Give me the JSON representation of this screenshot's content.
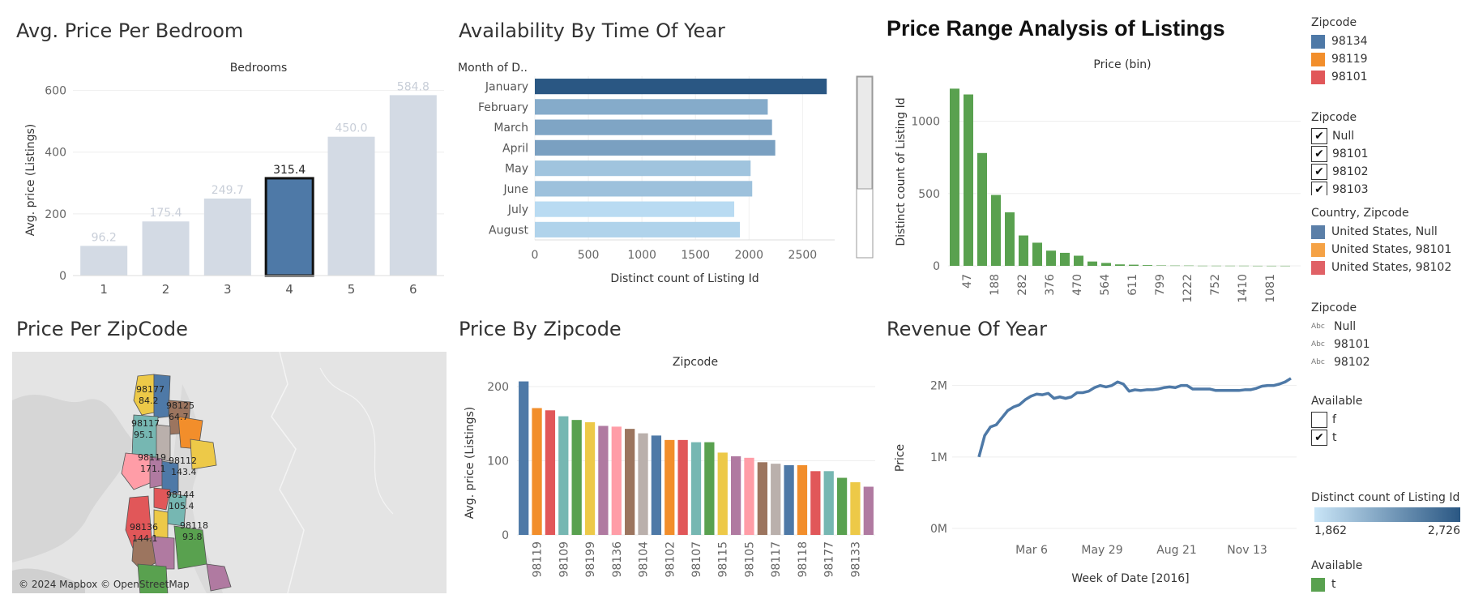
{
  "panels": {
    "bedroom": {
      "title": "Avg. Price Per Bedroom"
    },
    "availability": {
      "title": "Availability By Time Of Year"
    },
    "range": {
      "title": "Price Range Analysis of Listings"
    },
    "map": {
      "title": "Price Per ZipCode",
      "attribution": "© 2024 Mapbox © OpenStreetMap"
    },
    "zipbar": {
      "title": "Price By Zipcode"
    },
    "revenue": {
      "title": "Revenue Of Year"
    }
  },
  "chart_data": [
    {
      "id": "bedroom",
      "type": "bar",
      "title": "Avg. Price Per Bedroom",
      "column_header": "Bedrooms",
      "ylabel": "Avg. price (Listings)",
      "categories": [
        "1",
        "2",
        "3",
        "4",
        "5",
        "6"
      ],
      "values": [
        96.2,
        175.4,
        249.7,
        315.4,
        450.0,
        584.8
      ],
      "value_labels": [
        "96.2",
        "175.4",
        "249.7",
        "315.4",
        "450.0",
        "584.8"
      ],
      "highlighted": "4",
      "ylim": [
        0,
        620
      ],
      "yticks": [
        0,
        200,
        400,
        600
      ],
      "colors": {
        "highlight": "#4e79a7",
        "dim": "#d3dae4"
      }
    },
    {
      "id": "availability",
      "type": "bar",
      "orientation": "horizontal",
      "title": "Availability By Time Of Year",
      "row_header": "Month of D..",
      "xlabel": "Distinct count of Listing Id",
      "categories": [
        "January",
        "February",
        "March",
        "April",
        "May",
        "June",
        "July",
        "August"
      ],
      "values": [
        2726,
        2175,
        2215,
        2245,
        2015,
        2030,
        1862,
        1915
      ],
      "xlim": [
        0,
        2800
      ],
      "xticks": [
        0,
        500,
        1000,
        1500,
        2000,
        2500
      ],
      "colors": {
        "low": "#b9dbf2",
        "high": "#2a5783"
      }
    },
    {
      "id": "range",
      "type": "bar",
      "title": "Price Range Analysis of Listings",
      "column_header": "Price (bin)",
      "ylabel": "Distinct count of Listing Id",
      "values": [
        1225,
        1185,
        780,
        490,
        370,
        210,
        160,
        105,
        90,
        70,
        30,
        20,
        10,
        8,
        5,
        3,
        2,
        2,
        1,
        1,
        1,
        1,
        0.5,
        0.5,
        0.5,
        0.5,
        0.5,
        0.5,
        0.5,
        0.5,
        0.5,
        0.5
      ],
      "tick_labels": [
        "47",
        "188",
        "282",
        "376",
        "470",
        "564",
        "611",
        "799",
        "1222",
        "752",
        "1410",
        "1081"
      ],
      "ylim": [
        0,
        1300
      ],
      "yticks": [
        0,
        500,
        1000
      ],
      "colors": {
        "bar": "#59a14f"
      }
    },
    {
      "id": "zipbar",
      "type": "bar",
      "title": "Price By Zipcode",
      "column_header": "Zipcode",
      "ylabel": "Avg. price (Listings)",
      "values": [
        207,
        171,
        168,
        160,
        155,
        152,
        147,
        146,
        143,
        137,
        134,
        128,
        128,
        125,
        125,
        111,
        106,
        104,
        98,
        96,
        94,
        94,
        86,
        86,
        77,
        71,
        65
      ],
      "tick_labels": [
        "98119",
        "98109",
        "98199",
        "98136",
        "98104",
        "98102",
        "98107",
        "98115",
        "98105",
        "98117",
        "98118",
        "98177",
        "98133"
      ],
      "ylim": [
        0,
        212
      ],
      "yticks": [
        0,
        100,
        200
      ],
      "colors": [
        "#4e79a7",
        "#f28e2b",
        "#e15759",
        "#76b7b2",
        "#59a14f",
        "#edc948",
        "#b07aa1",
        "#ff9da7",
        "#9c755f",
        "#bab0ac",
        "#4e79a7",
        "#f28e2b",
        "#e15759",
        "#76b7b2",
        "#59a14f",
        "#edc948",
        "#b07aa1",
        "#ff9da7",
        "#9c755f",
        "#bab0ac",
        "#4e79a7",
        "#f28e2b",
        "#e15759",
        "#76b7b2",
        "#59a14f",
        "#edc948",
        "#b07aa1"
      ]
    },
    {
      "id": "revenue",
      "type": "line",
      "title": "Revenue Of Year",
      "ylabel": "Price",
      "xlabel": "Week of Date [2016]",
      "values": [
        1.0,
        1.3,
        1.42,
        1.45,
        1.55,
        1.65,
        1.7,
        1.73,
        1.8,
        1.85,
        1.88,
        1.87,
        1.89,
        1.82,
        1.84,
        1.82,
        1.84,
        1.9,
        1.9,
        1.92,
        1.97,
        2.0,
        1.98,
        2.0,
        2.05,
        2.02,
        1.92,
        1.94,
        1.93,
        1.94,
        1.94,
        1.95,
        1.97,
        1.98,
        1.97,
        2.0,
        2.0,
        1.95,
        1.95,
        1.95,
        1.95,
        1.93,
        1.93,
        1.93,
        1.93,
        1.93,
        1.94,
        1.94,
        1.96,
        1.99,
        2.0,
        2.0,
        2.02,
        2.05,
        2.1
      ],
      "x_tick_labels": [
        "Mar 6",
        "May 29",
        "Aug 21",
        "Nov 13"
      ],
      "y_tick_labels": [
        "0M",
        "1M",
        "2M"
      ],
      "ylim": [
        0,
        2.2
      ],
      "colors": {
        "line": "#4e79a7"
      }
    },
    {
      "id": "map",
      "type": "map",
      "title": "Price Per ZipCode",
      "labels": [
        {
          "zip": "98177",
          "price": "84.2"
        },
        {
          "zip": "98125",
          "price": "64.7"
        },
        {
          "zip": "98117",
          "price": "95.1"
        },
        {
          "zip": "98119",
          "price": "171.1"
        },
        {
          "zip": "98112",
          "price": "143.4"
        },
        {
          "zip": "98144",
          "price": "105.4"
        },
        {
          "zip": "98136",
          "price": "144.1"
        },
        {
          "zip": "98118",
          "price": "93.8"
        }
      ]
    }
  ],
  "legend": {
    "zip_colors": {
      "title": "Zipcode",
      "items": [
        {
          "label": "98134",
          "color": "#4e79a7"
        },
        {
          "label": "98119",
          "color": "#f28e2b"
        },
        {
          "label": "98101",
          "color": "#e15759"
        }
      ]
    },
    "zip_filter": {
      "title": "Zipcode",
      "items": [
        {
          "label": "Null",
          "checked": "✔"
        },
        {
          "label": "98101",
          "checked": "✔"
        },
        {
          "label": "98102",
          "checked": "✔"
        },
        {
          "label": "98103",
          "checked": "✔"
        }
      ]
    },
    "country_zip": {
      "title": "Country, Zipcode",
      "items": [
        {
          "label": "United States, Null",
          "color": "#5b7fa8"
        },
        {
          "label": "United States, 98101",
          "color": "#f5a245"
        },
        {
          "label": "United States, 98102",
          "color": "#e06166"
        }
      ]
    },
    "zip_text": {
      "title": "Zipcode",
      "abc": "Abc",
      "items": [
        "Null",
        "98101",
        "98102"
      ]
    },
    "available": {
      "title": "Available",
      "items": [
        {
          "label": "f",
          "checked": ""
        },
        {
          "label": "t",
          "checked": "✔"
        }
      ]
    },
    "gradient": {
      "title": "Distinct count of Listing Id",
      "min": "1,862",
      "max": "2,726",
      "color_low": "#c9e5f7",
      "color_high": "#2a5783"
    },
    "available_color": {
      "title": "Available",
      "items": [
        {
          "label": "t",
          "color": "#59a14f"
        }
      ]
    }
  }
}
